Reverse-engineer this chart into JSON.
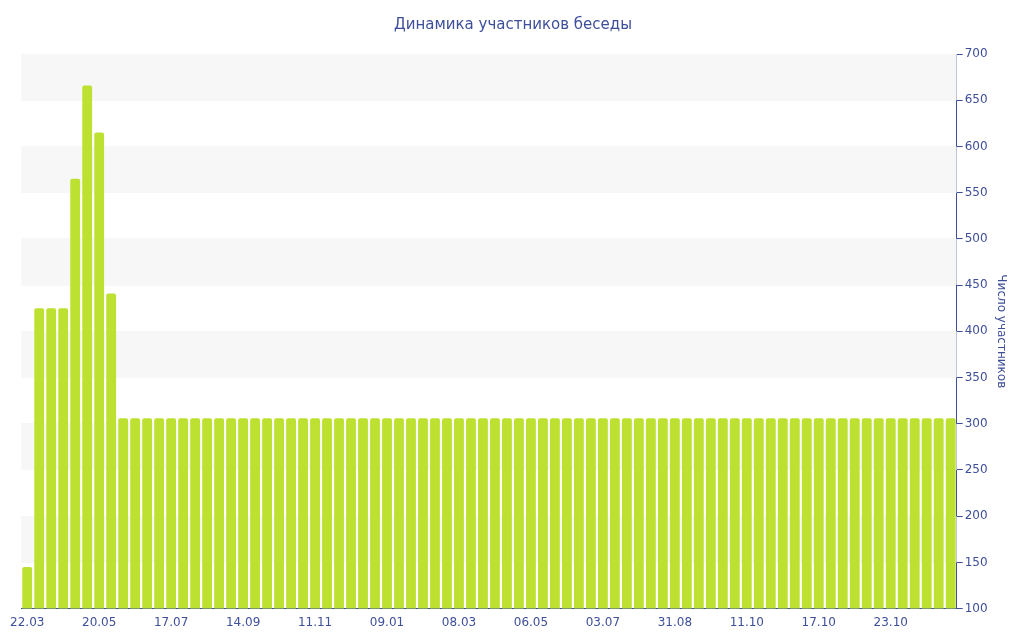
{
  "chart_data": {
    "type": "bar",
    "title": "Динамика участников беседы",
    "ylabel": "Число участников",
    "categories": [
      "22.03",
      null,
      null,
      null,
      null,
      null,
      "20.05",
      null,
      null,
      null,
      null,
      null,
      "17.07",
      null,
      null,
      null,
      null,
      null,
      "14.09",
      null,
      null,
      null,
      null,
      null,
      "11.11",
      null,
      null,
      null,
      null,
      null,
      "09.01",
      null,
      null,
      null,
      null,
      null,
      "08.03",
      null,
      null,
      null,
      null,
      null,
      "06.05",
      null,
      null,
      null,
      null,
      null,
      "03.07",
      null,
      null,
      null,
      null,
      null,
      "31.08",
      null,
      null,
      null,
      null,
      null,
      "11.10",
      null,
      null,
      null,
      null,
      null,
      "17.10",
      null,
      null,
      null,
      null,
      null,
      "23.10",
      null,
      null,
      null,
      null,
      null
    ],
    "values": [
      145,
      425,
      425,
      425,
      565,
      666,
      615,
      441,
      306,
      306,
      306,
      306,
      306,
      306,
      306,
      306,
      306,
      306,
      306,
      306,
      306,
      306,
      306,
      306,
      306,
      306,
      306,
      306,
      306,
      306,
      306,
      306,
      306,
      306,
      306,
      306,
      306,
      306,
      306,
      306,
      306,
      306,
      306,
      306,
      306,
      306,
      306,
      306,
      306,
      306,
      306,
      306,
      306,
      306,
      306,
      306,
      306,
      306,
      306,
      306,
      306,
      306,
      306,
      306,
      306,
      306,
      306,
      306,
      306,
      306,
      306,
      306,
      306,
      306,
      306,
      306,
      306,
      306
    ],
    "color": "#bde130",
    "ylim": [
      100,
      700
    ],
    "yticks": [
      100,
      150,
      200,
      250,
      300,
      350,
      400,
      450,
      500,
      550,
      600,
      650,
      700
    ],
    "grid": "y",
    "legend": false
  }
}
